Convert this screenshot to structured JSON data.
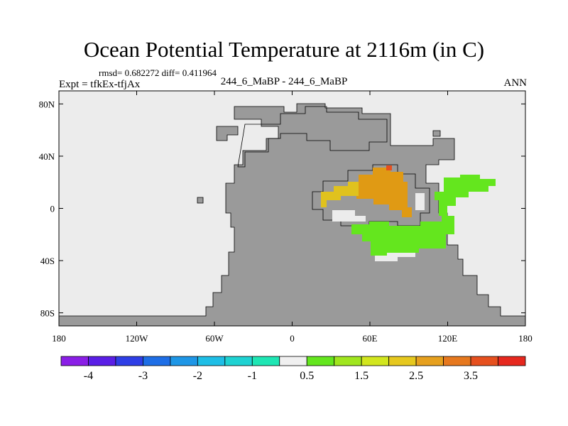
{
  "header": {
    "title": "Ocean Potential Temperature at 2116m (in C)",
    "stats": "rmsd= 0.682272 diff= 0.411964",
    "expt": "Expt = tfkEx-tfjAx",
    "case": "244_6_MaBP - 244_6_MaBP",
    "season": "ANN"
  },
  "axes": {
    "lon_ticks": [
      {
        "lon": -180,
        "label": "180"
      },
      {
        "lon": -120,
        "label": "120W"
      },
      {
        "lon": -60,
        "label": "60W"
      },
      {
        "lon": 0,
        "label": "0"
      },
      {
        "lon": 60,
        "label": "60E"
      },
      {
        "lon": 120,
        "label": "120E"
      },
      {
        "lon": 180,
        "label": "180"
      }
    ],
    "lat_ticks": [
      {
        "lat": 80,
        "label": "80N"
      },
      {
        "lat": 40,
        "label": "40N"
      },
      {
        "lat": 0,
        "label": "0"
      },
      {
        "lat": -40,
        "label": "40S"
      },
      {
        "lat": -80,
        "label": "80S"
      }
    ],
    "lon_range": [
      -180,
      180
    ],
    "lat_range": [
      -90,
      90
    ]
  },
  "colorbar": {
    "colors": [
      "#8a1ee6",
      "#5a1ee6",
      "#2e3ee6",
      "#1e6ee6",
      "#1e96e6",
      "#1ebee6",
      "#1ed2d2",
      "#1ee6b4",
      "#f0f0f0",
      "#64e61e",
      "#a0e61e",
      "#d2e61e",
      "#e6c81e",
      "#e6a01e",
      "#e6781e",
      "#e6501e",
      "#e6281e"
    ],
    "labels": [
      {
        "index": 1,
        "label": "-4"
      },
      {
        "index": 3,
        "label": "-3"
      },
      {
        "index": 5,
        "label": "-2"
      },
      {
        "index": 7,
        "label": "-1"
      },
      {
        "index": 9,
        "label": "0.5"
      },
      {
        "index": 11,
        "label": "1.5"
      },
      {
        "index": 13,
        "label": "2.5"
      },
      {
        "index": 15,
        "label": "3.5"
      }
    ]
  },
  "colors": {
    "land": "#9a9a9a",
    "ocean": "#ececec",
    "anomaly_high": "#e09a14",
    "anomaly_mid": "#e0c21e",
    "anomaly_low": "#64e61e",
    "anomaly_peak": "#e6501e"
  }
}
